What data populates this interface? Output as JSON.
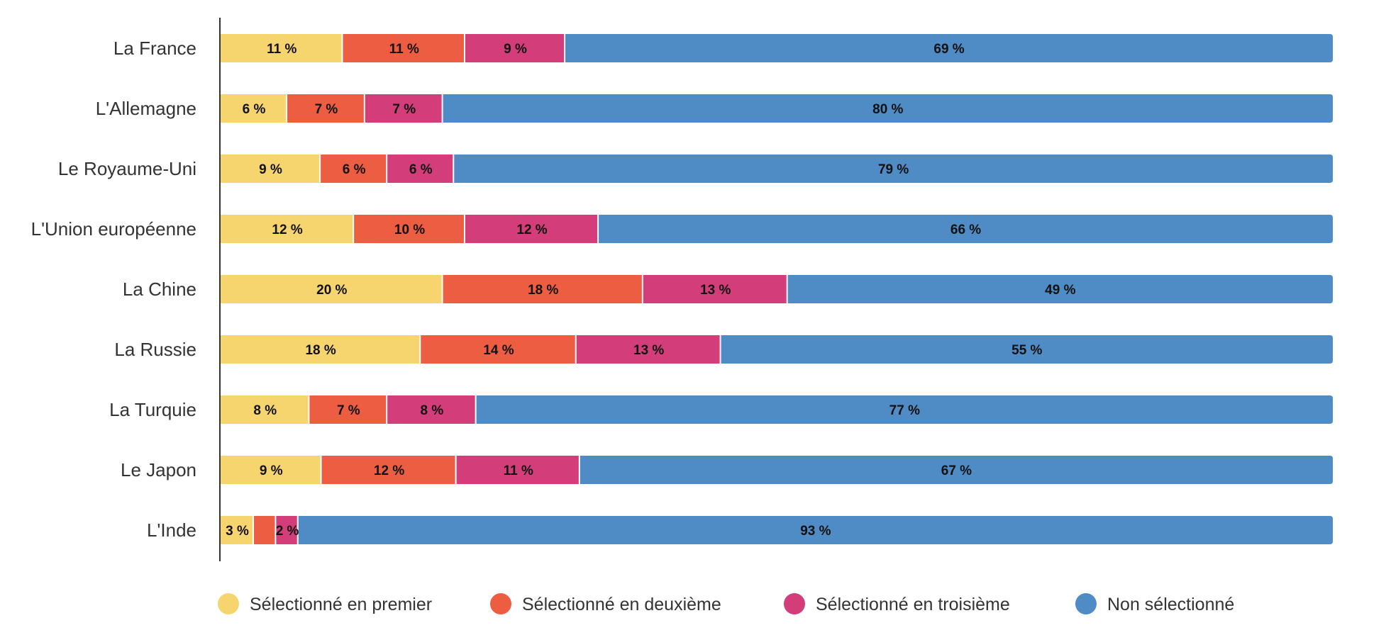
{
  "chart_data": {
    "type": "bar",
    "orientation": "horizontal",
    "stacked": true,
    "title": "",
    "xlabel": "",
    "ylabel": "",
    "xlim": [
      0,
      100
    ],
    "grid": false,
    "legend_position": "bottom",
    "categories": [
      "La France",
      "L'Allemagne",
      "Le Royaume-Uni",
      "L'Union européenne",
      "La Chine",
      "La Russie",
      "La Turquie",
      "Le Japon",
      "L'Inde"
    ],
    "series": [
      {
        "name": "Sélectionné en premier",
        "color": "#F7D56E",
        "values": [
          11,
          6,
          9,
          12,
          20,
          18,
          8,
          9,
          3
        ],
        "labels": [
          "11 %",
          "6 %",
          "9 %",
          "12 %",
          "20 %",
          "18 %",
          "8 %",
          "9 %",
          "3 %"
        ]
      },
      {
        "name": "Sélectionné en deuxième",
        "color": "#EC5D42",
        "values": [
          11,
          7,
          6,
          10,
          18,
          14,
          7,
          12,
          2
        ],
        "labels": [
          "11 %",
          "7 %",
          "6 %",
          "10 %",
          "18 %",
          "14 %",
          "7 %",
          "12 %",
          ""
        ]
      },
      {
        "name": "Sélectionné en troisième",
        "color": "#D33D7A",
        "values": [
          9,
          7,
          6,
          12,
          13,
          13,
          8,
          11,
          2
        ],
        "labels": [
          "9 %",
          "7 %",
          "6 %",
          "12 %",
          "13 %",
          "13 %",
          "8 %",
          "11 %",
          "2 %"
        ]
      },
      {
        "name": "Non sélectionné",
        "color": "#4F8BC4",
        "values": [
          69,
          80,
          79,
          66,
          49,
          55,
          77,
          67,
          93
        ],
        "labels": [
          "69 %",
          "80 %",
          "79 %",
          "66 %",
          "49 %",
          "55 %",
          "77 %",
          "67 %",
          "93 %"
        ]
      }
    ]
  }
}
